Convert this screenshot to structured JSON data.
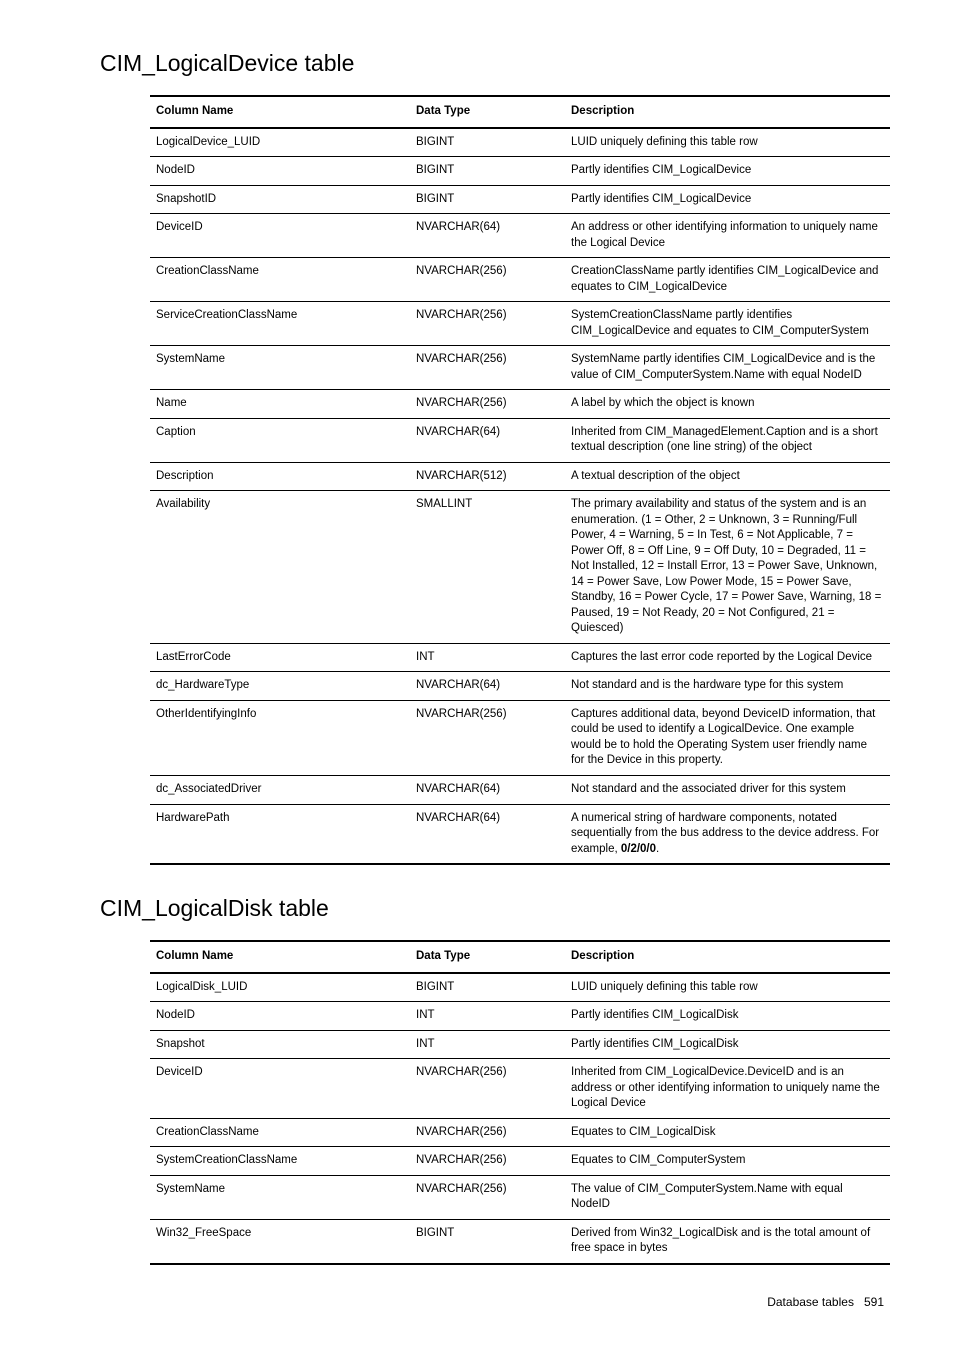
{
  "page": {
    "footer_text": "Database tables",
    "footer_page": "591"
  },
  "sections": [
    {
      "title": "CIM_LogicalDevice table",
      "headers": {
        "col1": "Column Name",
        "col2": "Data Type",
        "col3": "Description"
      },
      "rows": [
        {
          "name": "LogicalDevice_LUID",
          "type": "BIGINT",
          "desc": "LUID uniquely defining this table row"
        },
        {
          "name": "NodeID",
          "type": "BIGINT",
          "desc": "Partly identifies CIM_LogicalDevice"
        },
        {
          "name": "SnapshotID",
          "type": "BIGINT",
          "desc": "Partly identifies CIM_LogicalDevice"
        },
        {
          "name": "DeviceID",
          "type": "NVARCHAR(64)",
          "desc": "An address or other identifying information to uniquely name the Logical Device"
        },
        {
          "name": "CreationClassName",
          "type": "NVARCHAR(256)",
          "desc": "CreationClassName partly identifies CIM_LogicalDevice and equates to CIM_LogicalDevice"
        },
        {
          "name": "ServiceCreationClassName",
          "type": "NVARCHAR(256)",
          "desc": "SystemCreationClassName partly identifies CIM_LogicalDevice and equates to CIM_ComputerSystem"
        },
        {
          "name": "SystemName",
          "type": "NVARCHAR(256)",
          "desc": "SystemName partly identifies CIM_LogicalDevice and is the value of CIM_ComputerSystem.Name with equal NodeID"
        },
        {
          "name": "Name",
          "type": "NVARCHAR(256)",
          "desc": "A label by which the object is known"
        },
        {
          "name": "Caption",
          "type": "NVARCHAR(64)",
          "desc": "Inherited from CIM_ManagedElement.Caption and is a short textual description (one line string) of the object"
        },
        {
          "name": "Description",
          "type": "NVARCHAR(512)",
          "desc": "A textual description of the object"
        },
        {
          "name": "Availability",
          "type": "SMALLINT",
          "desc": "The primary availability and status of the system and is an enumeration. (1 = Other, 2 = Unknown, 3 = Running/Full Power, 4 = Warning, 5 = In Test, 6 = Not Applicable, 7 = Power Off, 8 = Off Line, 9 = Off Duty, 10 = Degraded, 11 = Not Installed, 12 = Install Error, 13 = Power Save, Unknown, 14 = Power Save, Low Power Mode, 15 = Power Save, Standby, 16 = Power Cycle, 17 = Power Save, Warning, 18 = Paused, 19 = Not Ready, 20 = Not Configured, 21 = Quiesced)"
        },
        {
          "name": "LastErrorCode",
          "type": "INT",
          "desc": "Captures the last error code reported by the Logical Device"
        },
        {
          "name": "dc_HardwareType",
          "type": "NVARCHAR(64)",
          "desc": "Not standard and is the hardware type for this system"
        },
        {
          "name": "OtherIdentifyingInfo",
          "type": "NVARCHAR(256)",
          "desc": "Captures additional data, beyond DeviceID information, that could be used to identify a LogicalDevice. One example would be to hold the Operating System user friendly name for the Device in this property."
        },
        {
          "name": "dc_AssociatedDriver",
          "type": "NVARCHAR(64)",
          "desc": "Not standard and the associated driver for this system"
        },
        {
          "name": "HardwarePath",
          "type": "NVARCHAR(64)",
          "desc_prefix": "A numerical string of hardware components, notated sequentially from the bus address to the device address. For example, ",
          "desc_bold": "0/2/0/0",
          "desc_suffix": "."
        }
      ]
    },
    {
      "title": "CIM_LogicalDisk table",
      "headers": {
        "col1": "Column Name",
        "col2": "Data Type",
        "col3": "Description"
      },
      "rows": [
        {
          "name": "LogicalDisk_LUID",
          "type": "BIGINT",
          "desc": "LUID uniquely defining this table row"
        },
        {
          "name": "NodeID",
          "type": "INT",
          "desc": "Partly identifies CIM_LogicalDisk"
        },
        {
          "name": "Snapshot",
          "type": "INT",
          "desc": "Partly identifies CIM_LogicalDisk"
        },
        {
          "name": "DeviceID",
          "type": "NVARCHAR(256)",
          "desc": "Inherited from CIM_LogicalDevice.DeviceID and is an address or other identifying information to uniquely name the Logical Device"
        },
        {
          "name": "CreationClassName",
          "type": "NVARCHAR(256)",
          "desc": "Equates to CIM_LogicalDisk"
        },
        {
          "name": "SystemCreationClassName",
          "type": "NVARCHAR(256)",
          "desc": "Equates to CIM_ComputerSystem"
        },
        {
          "name": "SystemName",
          "type": "NVARCHAR(256)",
          "desc": "The value of CIM_ComputerSystem.Name with equal NodeID"
        },
        {
          "name": "Win32_FreeSpace",
          "type": "BIGINT",
          "desc": "Derived from Win32_LogicalDisk and is the total amount of free space in bytes"
        }
      ]
    }
  ]
}
